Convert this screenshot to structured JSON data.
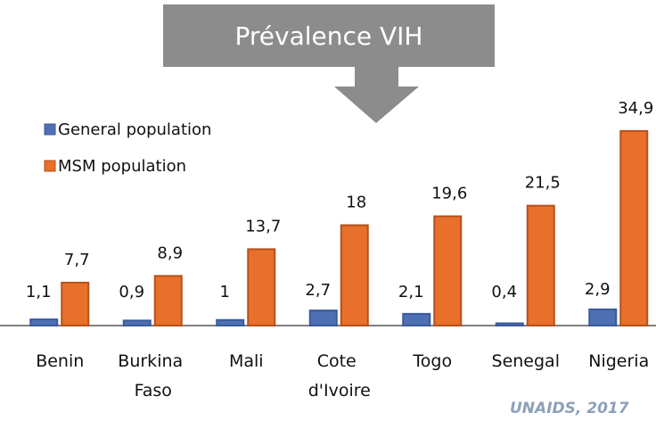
{
  "chart_data": {
    "type": "bar",
    "title": "Prévalence VIH",
    "categories": [
      "Benin",
      "Burkina Faso",
      "Mali",
      "Cote d'Ivoire",
      "Togo",
      "Senegal",
      "Nigeria"
    ],
    "series": [
      {
        "name": "General population",
        "color": "#4f6fb5",
        "values": [
          1.1,
          0.9,
          1,
          2.7,
          2.1,
          0.4,
          2.9
        ],
        "value_labels": [
          "1,1",
          "0,9",
          "1",
          "2,7",
          "2,1",
          "0,4",
          "2,9"
        ]
      },
      {
        "name": "MSM population",
        "color": "#e8702a",
        "values": [
          7.7,
          8.9,
          13.7,
          18,
          19.6,
          21.5,
          34.9
        ],
        "value_labels": [
          "7,7",
          "8,9",
          "13,7",
          "18",
          "19,6",
          "21,5",
          "34,9"
        ]
      }
    ],
    "source": "UNAIDS, 2017"
  }
}
